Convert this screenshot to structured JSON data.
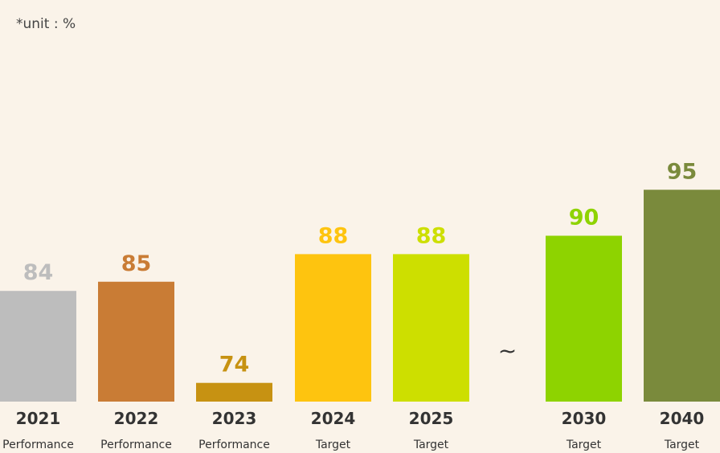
{
  "unit_note": "*unit : %",
  "break_symbol": "~",
  "chart_data": {
    "type": "bar",
    "title": "",
    "xlabel": "",
    "ylabel": "",
    "categories": [
      "2021",
      "2022",
      "2023",
      "2024",
      "2025",
      "2030",
      "2040"
    ],
    "sublabels": [
      "Performance",
      "Performance",
      "Performance",
      "Target",
      "Target",
      "Target",
      "Target"
    ],
    "values": [
      84,
      85,
      74,
      88,
      88,
      90,
      95
    ],
    "colors": [
      "#bdbdbd",
      "#c97c35",
      "#c79212",
      "#fec40f",
      "#cddf00",
      "#8ed300",
      "#7a8a3c"
    ],
    "grid": false,
    "legend": "none",
    "axis_break_after_index": 4
  }
}
